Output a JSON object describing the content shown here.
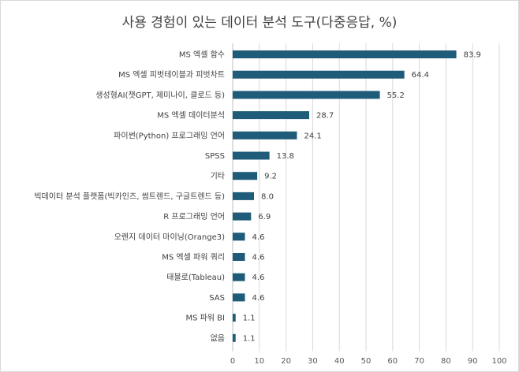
{
  "chart_data": {
    "type": "bar",
    "orientation": "horizontal",
    "title": "사용 경험이 있는 데이터 분석 도구(다중응답, %)",
    "categories": [
      "MS 엑셀 함수",
      "MS 엑셀 피벗테이블과 피벗차트",
      "생성형AI(챗GPT, 제미나이, 클로드 등)",
      "MS 엑셀 데이터분석",
      "파이썬(Python) 프로그래밍 언어",
      "SPSS",
      "기타",
      "빅데이터 분석 플랫폼(빅카인즈, 썸트렌드, 구글트렌드 등)",
      "R 프로그래밍 언어",
      "오렌지 데이터 마이닝(Orange3)",
      "MS 엑셀 파워 쿼리",
      "태블로(Tableau)",
      "SAS",
      "MS 파워 BI",
      "없음"
    ],
    "values": [
      83.9,
      64.4,
      55.2,
      28.7,
      24.1,
      13.8,
      9.2,
      8.0,
      6.9,
      4.6,
      4.6,
      4.6,
      4.6,
      1.1,
      1.1
    ],
    "value_labels": [
      "83.9",
      "64.4",
      "55.2",
      "28.7",
      "24.1",
      "13.8",
      "9.2",
      "8.0",
      "6.9",
      "4.6",
      "4.6",
      "4.6",
      "4.6",
      "1.1",
      "1.1"
    ],
    "xlim": [
      0,
      100
    ],
    "xticks": [
      0,
      10,
      20,
      30,
      40,
      50,
      60,
      70,
      80,
      90,
      100
    ],
    "xtick_labels": [
      "0",
      "10",
      "20",
      "30",
      "40",
      "50",
      "60",
      "70",
      "80",
      "90",
      "100"
    ],
    "grid": true,
    "bar_color": "#1f5c7a",
    "xlabel": "",
    "ylabel": ""
  }
}
